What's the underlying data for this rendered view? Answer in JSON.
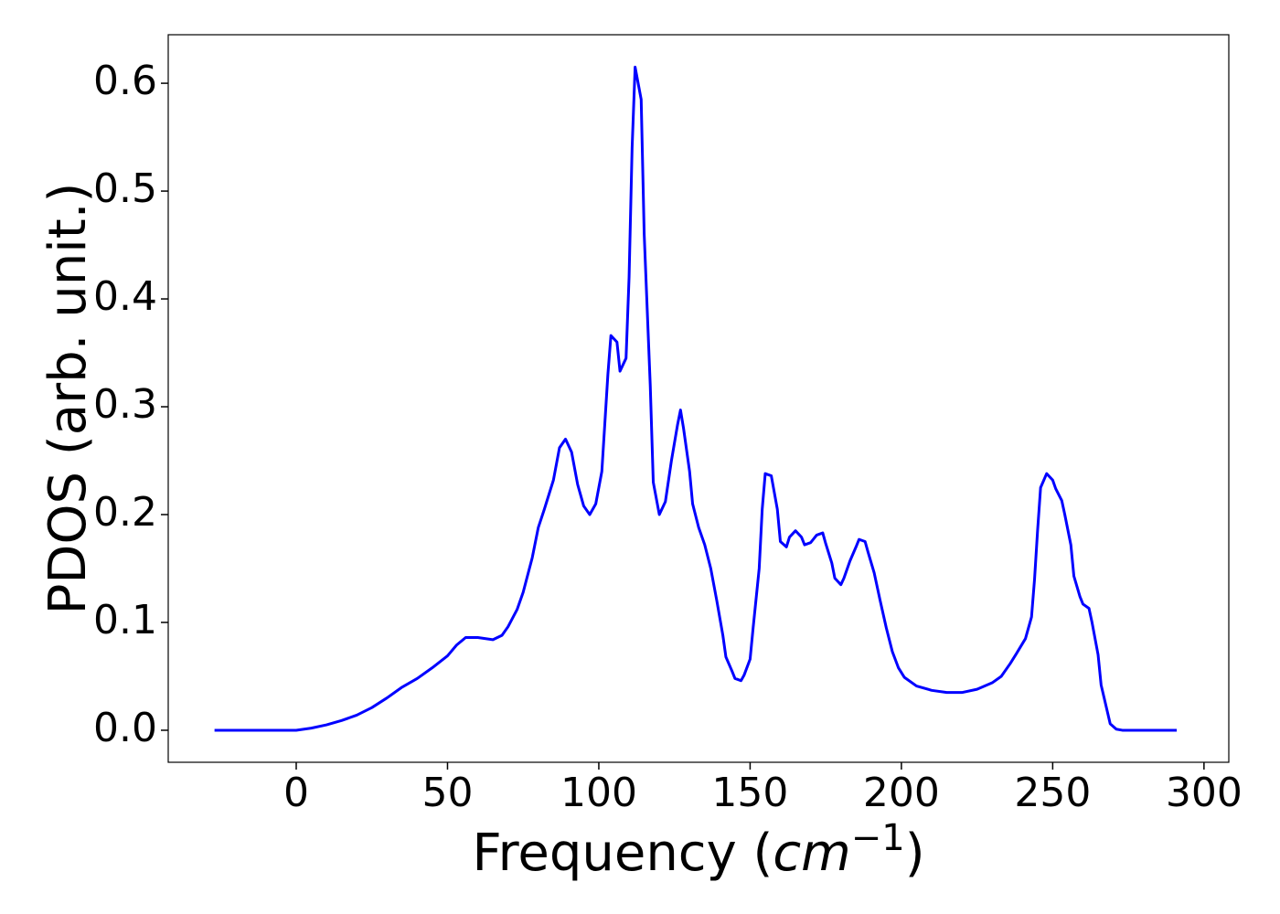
{
  "chart_data": {
    "type": "line",
    "xlabel": {
      "text": "Frequency (",
      "italic": "cm",
      "sup": "−1",
      "close": ")"
    },
    "ylabel": "PDOS (arb. unit.)",
    "xlim": [
      -42.3,
      308.2
    ],
    "ylim": [
      -0.0297,
      0.645
    ],
    "xticks": [
      0,
      50,
      100,
      150,
      200,
      250,
      300
    ],
    "yticks": [
      {
        "value": 0,
        "label": "0.0"
      },
      0.1,
      0.2,
      0.3,
      0.4,
      0.5,
      0.6
    ],
    "x": [
      -27,
      -10,
      0,
      5,
      10,
      15,
      20,
      25,
      30,
      35,
      40,
      45,
      50,
      53,
      56,
      60,
      65,
      68,
      70,
      73,
      75,
      78,
      80,
      82,
      85,
      87,
      89,
      91,
      93,
      95,
      97,
      99,
      101,
      103,
      104,
      106,
      107,
      109,
      110,
      111,
      112,
      114,
      115,
      117,
      118,
      120,
      122,
      124,
      126,
      127,
      128,
      130,
      131,
      133,
      135,
      137,
      139,
      141,
      142,
      144,
      145,
      147,
      148,
      150,
      151,
      153,
      154,
      155,
      157,
      159,
      160,
      162,
      163,
      165,
      167,
      168,
      170,
      172,
      174,
      175,
      177,
      178,
      180,
      181,
      183,
      185,
      186,
      188,
      189,
      191,
      193,
      195,
      197,
      199,
      201,
      205,
      210,
      215,
      220,
      225,
      230,
      233,
      236,
      238,
      241,
      243,
      244,
      245,
      246,
      248,
      250,
      251,
      253,
      254,
      256,
      257,
      259,
      260,
      262,
      263,
      265,
      266,
      268,
      269,
      271,
      273,
      291
    ],
    "series": [
      {
        "color": "#0000ff",
        "values": [
          0,
          0,
          0,
          0.002,
          0.005,
          0.009,
          0.014,
          0.021,
          0.03,
          0.04,
          0.048,
          0.058,
          0.069,
          0.079,
          0.086,
          0.086,
          0.084,
          0.088,
          0.096,
          0.112,
          0.128,
          0.16,
          0.188,
          0.205,
          0.232,
          0.262,
          0.27,
          0.258,
          0.228,
          0.208,
          0.2,
          0.21,
          0.24,
          0.33,
          0.366,
          0.36,
          0.333,
          0.345,
          0.42,
          0.54,
          0.615,
          0.585,
          0.46,
          0.32,
          0.23,
          0.2,
          0.212,
          0.25,
          0.283,
          0.297,
          0.28,
          0.24,
          0.21,
          0.188,
          0.172,
          0.15,
          0.12,
          0.088,
          0.068,
          0.055,
          0.048,
          0.046,
          0.051,
          0.066,
          0.095,
          0.15,
          0.205,
          0.238,
          0.236,
          0.205,
          0.175,
          0.17,
          0.179,
          0.185,
          0.179,
          0.172,
          0.174,
          0.181,
          0.183,
          0.173,
          0.155,
          0.141,
          0.135,
          0.141,
          0.157,
          0.17,
          0.177,
          0.175,
          0.165,
          0.146,
          0.12,
          0.095,
          0.073,
          0.058,
          0.049,
          0.041,
          0.037,
          0.035,
          0.035,
          0.038,
          0.044,
          0.05,
          0.062,
          0.071,
          0.085,
          0.105,
          0.14,
          0.185,
          0.225,
          0.238,
          0.232,
          0.224,
          0.213,
          0.2,
          0.172,
          0.143,
          0.124,
          0.117,
          0.113,
          0.1,
          0.07,
          0.042,
          0.018,
          0.006,
          0.001,
          0,
          0
        ]
      }
    ]
  }
}
